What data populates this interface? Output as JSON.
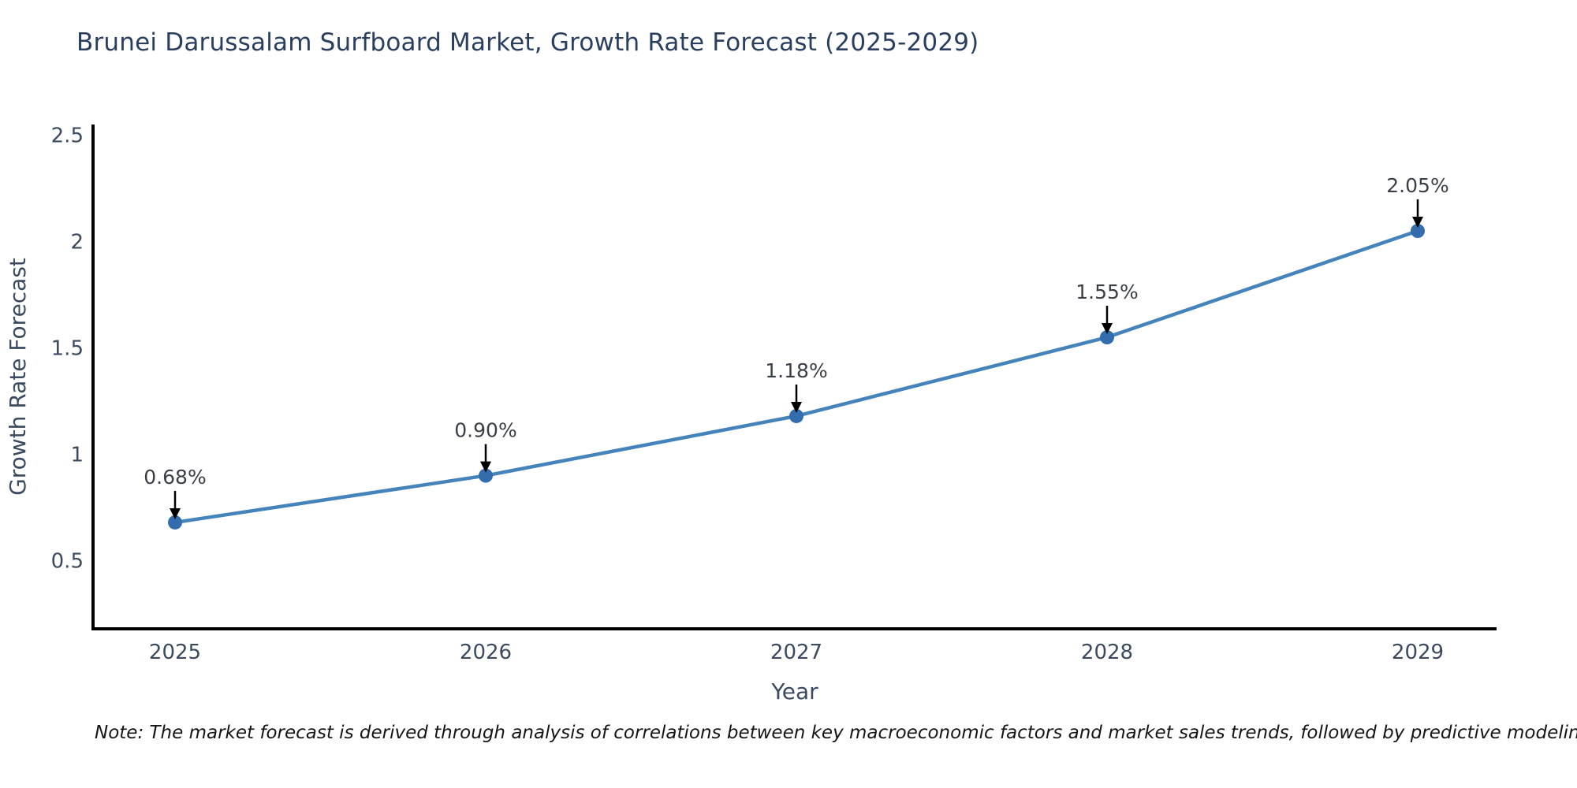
{
  "title": {
    "text": "Brunei Darussalam Surfboard Market, Growth Rate Forecast (2025-2029)"
  },
  "note": {
    "text": "Note: The market forecast is derived through analysis of correlations between key macroeconomic factors and market sales trends, followed by predictive modeling to project future sales"
  },
  "chart_data": {
    "type": "line",
    "title": "Brunei Darussalam Surfboard Market, Growth Rate Forecast (2025-2029)",
    "x": [
      2025,
      2026,
      2027,
      2028,
      2029
    ],
    "values": [
      0.68,
      0.9,
      1.18,
      1.55,
      2.05
    ],
    "annotations": [
      "0.68%",
      "0.90%",
      "1.18%",
      "1.55%",
      "2.05%"
    ],
    "xlabel": "Year",
    "ylabel": "Growth Rate Forecast",
    "ylim": [
      0.18,
      2.55
    ],
    "yticks": [
      0.5,
      1,
      1.5,
      2,
      2.5
    ],
    "grid": false,
    "legend": "none",
    "colors": {
      "line": "#4583bb",
      "marker": "#336dad",
      "spine": "#000000",
      "tick_text": "#3b4a5f",
      "axis_title_text": "#3b4a5f",
      "title_text": "#2a3f5f",
      "annotation_text": "#3a3f47",
      "arrow": "#000000",
      "note_text": "#151515"
    }
  }
}
